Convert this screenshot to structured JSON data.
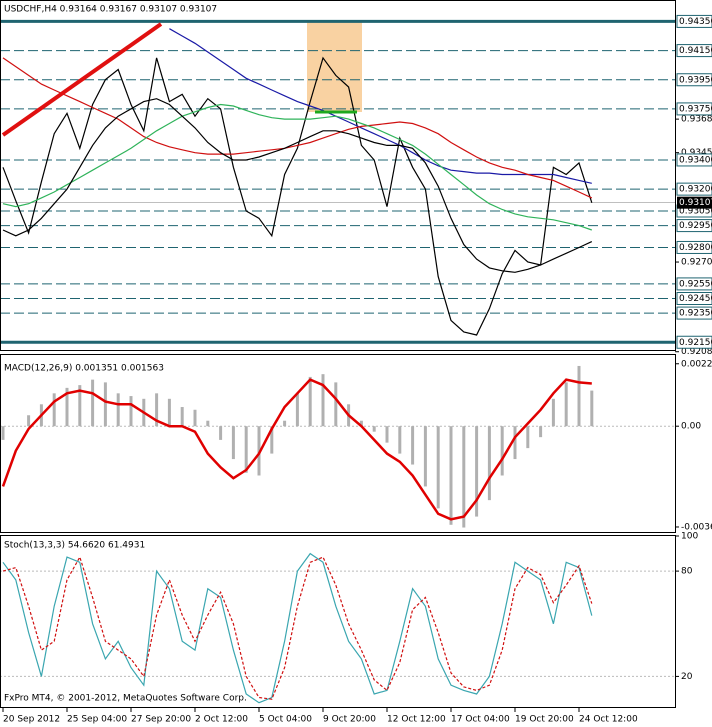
{
  "chart_data": [
    {
      "type": "line",
      "title": "USDCHF,H4  0.93164 0.93167 0.93107 0.93107",
      "ylim": [
        0.9209,
        0.9449
      ],
      "yticks": [
        {
          "value": 0.9368,
          "label": "0.93680"
        },
        {
          "value": 0.9345,
          "label": "0.93450"
        },
        {
          "value": 0.927,
          "label": "0.92700"
        },
        {
          "value": 0.92085,
          "label": "0.92085"
        }
      ],
      "levels": [
        {
          "value": 0.9435,
          "label": "0.94350"
        },
        {
          "value": 0.9415,
          "label": "0.94150"
        },
        {
          "value": 0.9395,
          "label": "0.93950"
        },
        {
          "value": 0.9375,
          "label": "0.93750"
        },
        {
          "value": 0.934,
          "label": "0.93400"
        },
        {
          "value": 0.932,
          "label": "0.93200"
        },
        {
          "value": 0.9305,
          "label": "0.93050"
        },
        {
          "value": 0.9295,
          "label": "0.92950"
        },
        {
          "value": 0.928,
          "label": "0.92800"
        },
        {
          "value": 0.9255,
          "label": "0.92550"
        },
        {
          "value": 0.9245,
          "label": "0.92450"
        },
        {
          "value": 0.9235,
          "label": "0.92350"
        },
        {
          "value": 0.9215,
          "label": "0.92150"
        }
      ],
      "last_price": {
        "value": 0.93107,
        "label": "0.93107"
      },
      "level_color": "#1f6470",
      "series": [
        {
          "name": "USDCHF",
          "color": "#000000",
          "values": [
            0.9335,
            0.9312,
            0.929,
            0.9325,
            0.9358,
            0.9372,
            0.9348,
            0.9378,
            0.9395,
            0.9402,
            0.9378,
            0.936,
            0.941,
            0.938,
            0.9385,
            0.937,
            0.9382,
            0.9375,
            0.9335,
            0.9305,
            0.93,
            0.9288,
            0.933,
            0.9348,
            0.938,
            0.941,
            0.9398,
            0.939,
            0.935,
            0.934,
            0.9308,
            0.9355,
            0.9335,
            0.932,
            0.926,
            0.923,
            0.9222,
            0.922,
            0.9238,
            0.9262,
            0.9278,
            0.927,
            0.9268,
            0.9335,
            0.933,
            0.9338,
            0.93107
          ]
        },
        {
          "name": "MA blue",
          "color": "#1a1aa6",
          "values": [
            null,
            null,
            null,
            null,
            null,
            null,
            null,
            null,
            null,
            null,
            null,
            null,
            null,
            0.943,
            0.9425,
            0.942,
            0.9414,
            0.9408,
            0.9402,
            0.9396,
            0.9392,
            0.9388,
            0.9384,
            0.938,
            0.9377,
            0.9374,
            0.937,
            0.9366,
            0.9362,
            0.9358,
            0.9354,
            0.935,
            0.9345,
            0.934,
            0.9336,
            0.9333,
            0.9332,
            0.9331,
            0.9331,
            0.933,
            0.933,
            0.933,
            0.933,
            0.933,
            0.9328,
            0.9326,
            0.9324
          ]
        },
        {
          "name": "MA red",
          "color": "#d01010",
          "values": [
            0.941,
            0.9404,
            0.9398,
            0.9392,
            0.9388,
            0.9384,
            0.938,
            0.9376,
            0.9372,
            0.9368,
            0.9362,
            0.9356,
            0.9352,
            0.9349,
            0.9347,
            0.9345,
            0.9344,
            0.9344,
            0.9344,
            0.9345,
            0.9346,
            0.9347,
            0.9348,
            0.935,
            0.9352,
            0.9355,
            0.9358,
            0.9361,
            0.9363,
            0.9364,
            0.9365,
            0.9366,
            0.9365,
            0.9362,
            0.9358,
            0.9352,
            0.9347,
            0.9342,
            0.9338,
            0.9335,
            0.9333,
            0.933,
            0.9328,
            0.9326,
            0.9322,
            0.9318,
            0.9314
          ]
        },
        {
          "name": "MA green",
          "color": "#2fb35a",
          "values": [
            0.931,
            0.9308,
            0.931,
            0.9314,
            0.9318,
            0.9323,
            0.9328,
            0.9333,
            0.9338,
            0.9343,
            0.9348,
            0.9354,
            0.936,
            0.9365,
            0.937,
            0.9373,
            0.9376,
            0.9378,
            0.9377,
            0.9374,
            0.9371,
            0.9369,
            0.9368,
            0.9368,
            0.9368,
            0.9369,
            0.937,
            0.9368,
            0.9365,
            0.9362,
            0.9358,
            0.9354,
            0.935,
            0.9344,
            0.9337,
            0.933,
            0.9323,
            0.9316,
            0.931,
            0.9306,
            0.9303,
            0.9301,
            0.93,
            0.9299,
            0.9297,
            0.9295,
            0.9292
          ]
        },
        {
          "name": "MA black",
          "color": "#000000",
          "values": [
            0.9292,
            0.9288,
            0.9292,
            0.93,
            0.931,
            0.932,
            0.9335,
            0.935,
            0.9362,
            0.937,
            0.9375,
            0.938,
            0.9382,
            0.9378,
            0.937,
            0.9362,
            0.9352,
            0.9345,
            0.934,
            0.934,
            0.9342,
            0.9345,
            0.9348,
            0.9352,
            0.9356,
            0.936,
            0.936,
            0.9358,
            0.9355,
            0.9352,
            0.935,
            0.935,
            0.9348,
            0.9338,
            0.9322,
            0.93,
            0.9282,
            0.9272,
            0.9266,
            0.9264,
            0.9263,
            0.9265,
            0.9268,
            0.9272,
            0.9276,
            0.928,
            0.9284
          ]
        }
      ]
    },
    {
      "type": "combo",
      "title": "MACD(12,26,9) 0.001351 0.001563",
      "ylim": [
        -0.0039,
        0.0026
      ],
      "yticks": [
        {
          "value": 0.00228,
          "label": "0.00228"
        },
        {
          "value": 0,
          "label": "0.00"
        },
        {
          "value": -0.00368,
          "label": "-0.00368"
        }
      ],
      "series": [
        {
          "name": "MACD",
          "type": "bar",
          "color": "#b0b0b0",
          "values": [
            -0.0005,
            0,
            0.0004,
            0.0008,
            0.0012,
            0.0014,
            0.0015,
            0.0017,
            0.0016,
            0.0012,
            0.0011,
            0.001,
            0.0012,
            0.001,
            0.0007,
            0.0006,
            0.0002,
            -0.0005,
            -0.0012,
            -0.0017,
            -0.0018,
            -0.001,
            0.0002,
            0.0012,
            0.0018,
            0.0019,
            0.0016,
            0.0008,
            0.0002,
            -0.0002,
            -0.0006,
            -0.001,
            -0.0014,
            -0.0022,
            -0.003,
            -0.0036,
            -0.0037,
            -0.0033,
            -0.0027,
            -0.0018,
            -0.0012,
            -0.0008,
            -0.0004,
            0.001,
            0.0016,
            0.0022,
            0.0013
          ]
        },
        {
          "name": "Signal",
          "type": "line",
          "color": "#e00000",
          "values": [
            -0.0022,
            -0.0009,
            -0.0001,
            0.0004,
            0.0009,
            0.0012,
            0.0013,
            0.0012,
            0.0009,
            0.0008,
            0.0008,
            0.0005,
            0.0002,
            0,
            0,
            -0.0002,
            -0.001,
            -0.0015,
            -0.0019,
            -0.0016,
            -0.001,
            -0.0001,
            0.0007,
            0.0012,
            0.0017,
            0.0015,
            0.001,
            0.0004,
            0,
            -0.0005,
            -0.001,
            -0.0013,
            -0.0018,
            -0.0025,
            -0.0032,
            -0.0034,
            -0.0033,
            -0.0027,
            -0.0019,
            -0.0012,
            -0.0004,
            0.0001,
            0.0006,
            0.0012,
            0.0017,
            0.0016,
            0.00156
          ]
        }
      ]
    },
    {
      "type": "line",
      "title": "Stoch(13,3,3) 54.6620 61.4931",
      "ylim": [
        2,
        100
      ],
      "yticks": [
        100,
        80,
        20
      ],
      "footer": "FxPro MT4, © 2001-2012, MetaQuotes Software Corp.",
      "categories": [
        "20 Sep 2012",
        null,
        null,
        null,
        null,
        "25 Sep 04:00",
        null,
        null,
        null,
        null,
        "27 Sep 20:00",
        null,
        null,
        null,
        null,
        "2 Oct 12:00",
        null,
        null,
        null,
        null,
        "5 Oct 04:00",
        null,
        null,
        null,
        null,
        "9 Oct 20:00",
        null,
        null,
        null,
        null,
        "12 Oct 12:00",
        null,
        null,
        null,
        null,
        "17 Oct 04:00",
        null,
        null,
        null,
        null,
        "19 Oct 20:00",
        null,
        null,
        null,
        null,
        "24 Oct 12:00",
        null
      ],
      "series": [
        {
          "name": "Main",
          "color": "#3aa6b0",
          "dash": false,
          "values": [
            85,
            75,
            45,
            20,
            60,
            88,
            85,
            50,
            30,
            40,
            25,
            15,
            80,
            70,
            40,
            35,
            70,
            65,
            35,
            10,
            5,
            8,
            40,
            80,
            90,
            85,
            60,
            40,
            30,
            10,
            12,
            40,
            70,
            60,
            30,
            15,
            12,
            10,
            20,
            50,
            85,
            80,
            75,
            50,
            85,
            82,
            54.662
          ]
        },
        {
          "name": "Signal",
          "color": "#d01010",
          "dash": true,
          "values": [
            80,
            82,
            60,
            35,
            40,
            75,
            88,
            65,
            40,
            35,
            30,
            20,
            55,
            75,
            55,
            40,
            55,
            68,
            50,
            20,
            8,
            7,
            25,
            60,
            85,
            88,
            72,
            50,
            35,
            18,
            12,
            28,
            58,
            65,
            45,
            22,
            14,
            12,
            15,
            35,
            70,
            82,
            78,
            62,
            72,
            83,
            61.4931
          ]
        }
      ]
    }
  ]
}
